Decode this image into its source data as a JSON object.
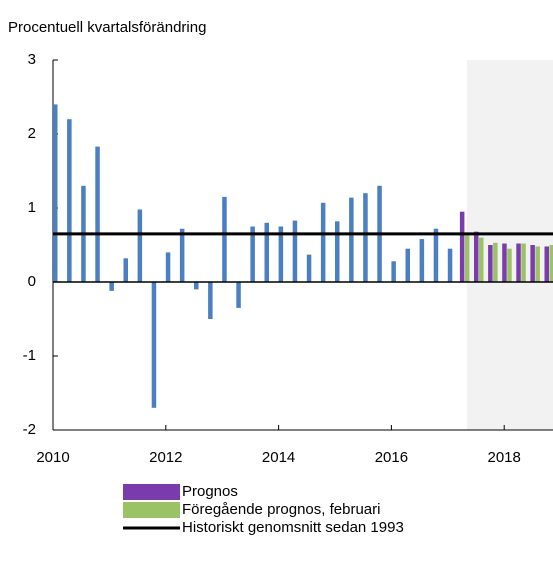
{
  "chart_data": {
    "type": "bar",
    "title": "Procentuell kvartalsförändring",
    "categories": [
      "2010",
      null,
      null,
      null,
      null,
      null,
      null,
      null,
      "2012",
      null,
      null,
      null,
      null,
      null,
      null,
      null,
      "2014",
      null,
      null,
      null,
      null,
      null,
      null,
      null,
      "2016",
      null,
      null,
      null,
      null,
      null,
      null,
      null,
      "2018",
      null,
      null,
      null
    ],
    "series": [
      {
        "color": "#4a7fc1",
        "values": [
          2.4,
          2.2,
          1.3,
          1.83,
          -0.12,
          0.32,
          0.98,
          -1.7,
          0.4,
          0.72,
          -0.1,
          -0.5,
          1.15,
          -0.35,
          0.75,
          0.8,
          0.75,
          0.83,
          0.37,
          1.07,
          0.82,
          1.14,
          1.2,
          1.3,
          0.28,
          0.45,
          0.58,
          0.72,
          0.45,
          null,
          null,
          null,
          null,
          null,
          null,
          null
        ]
      },
      {
        "name": "Prognos",
        "color": "#7a3bac",
        "values": [
          null,
          null,
          null,
          null,
          null,
          null,
          null,
          null,
          null,
          null,
          null,
          null,
          null,
          null,
          null,
          null,
          null,
          null,
          null,
          null,
          null,
          null,
          null,
          null,
          null,
          null,
          null,
          null,
          null,
          0.95,
          0.68,
          0.5,
          0.52,
          0.52,
          0.5,
          0.48
        ]
      },
      {
        "name": "Föregående prognos, februari",
        "color": "#9cc266",
        "values": [
          null,
          null,
          null,
          null,
          null,
          null,
          null,
          null,
          null,
          null,
          null,
          null,
          null,
          null,
          null,
          null,
          null,
          null,
          null,
          null,
          null,
          null,
          null,
          null,
          null,
          null,
          null,
          null,
          null,
          0.63,
          0.6,
          0.53,
          0.45,
          0.52,
          0.48,
          0.5
        ]
      }
    ],
    "hlines": [
      {
        "name": "Historiskt genomsnitt sedan 1993",
        "value": 0.65,
        "color": "#000000"
      }
    ],
    "ylim": [
      -2,
      3
    ],
    "yticks": [
      -2,
      -1,
      0,
      1,
      2,
      3
    ]
  }
}
